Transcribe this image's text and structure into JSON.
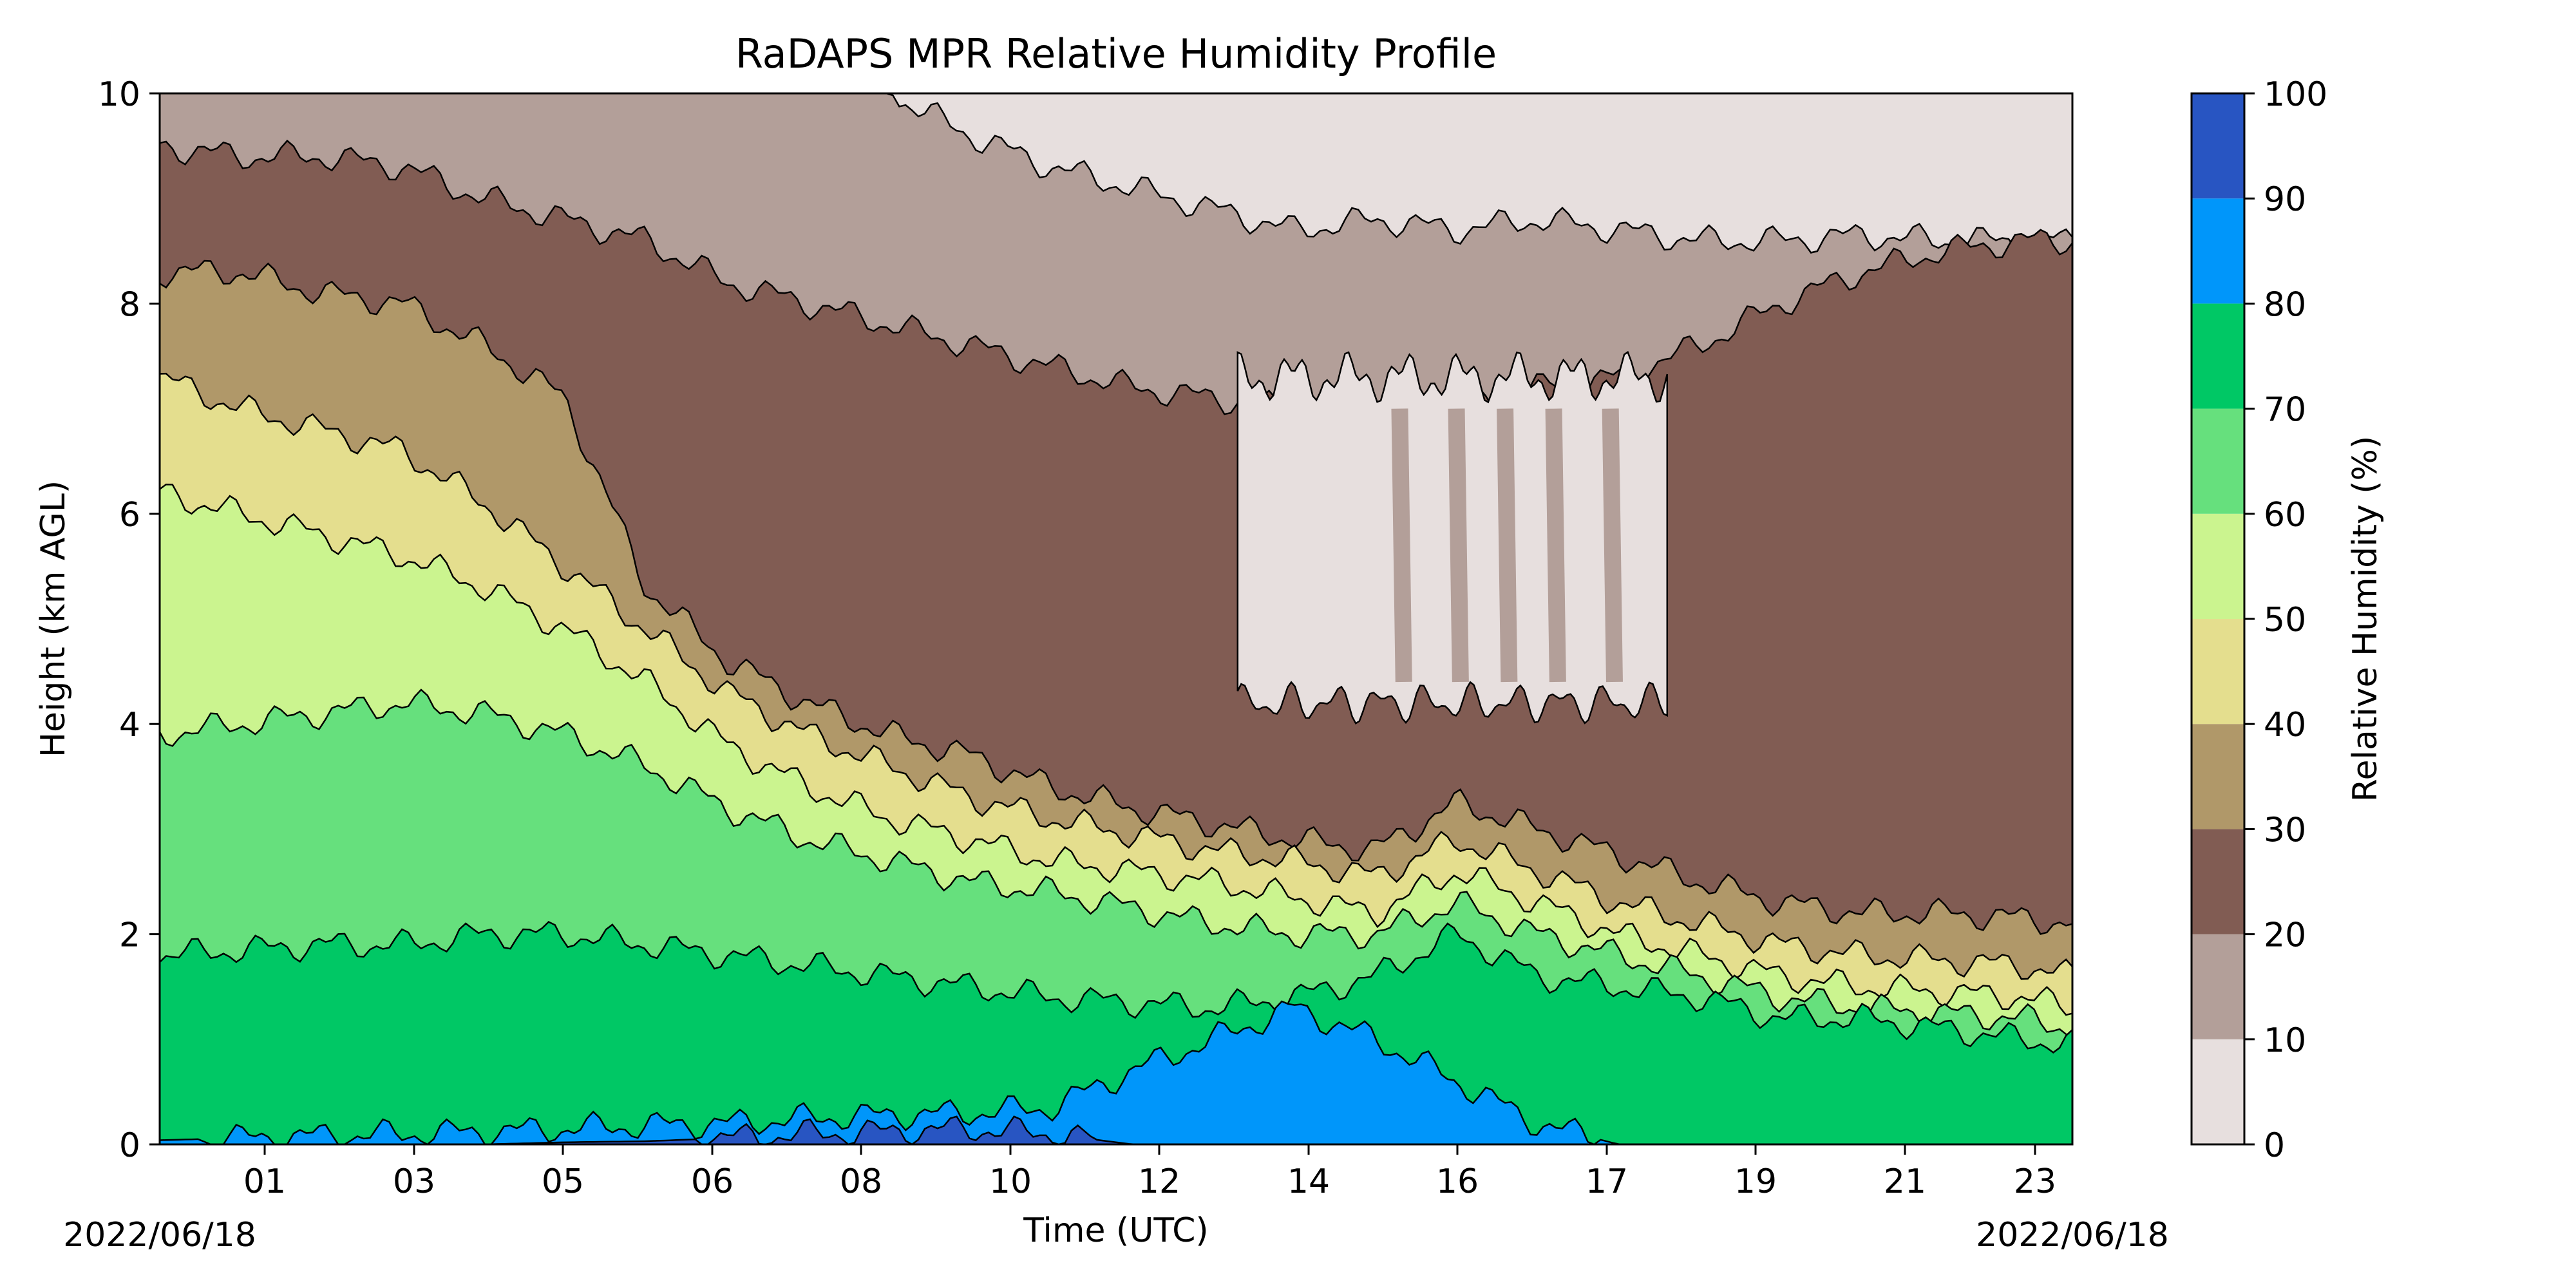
{
  "chart_data": {
    "type": "contour",
    "title": "RaDAPS MPR Relative Humidity Profile",
    "xlabel": "Time (UTC)",
    "ylabel": "Height (km AGL)",
    "x_ticks": [
      "01",
      "03",
      "05",
      "06",
      "08",
      "10",
      "12",
      "14",
      "16",
      "17",
      "19",
      "21",
      "23"
    ],
    "x_range_hours": [
      0,
      23.6
    ],
    "ylim": [
      0,
      10
    ],
    "y_ticks": [
      "0",
      "2",
      "4",
      "6",
      "8",
      "10"
    ],
    "date_left": "2022/06/18",
    "date_right": "2022/06/18",
    "colorbar": {
      "label": "Relative Humidity (%)",
      "ticks": [
        "0",
        "10",
        "20",
        "30",
        "40",
        "50",
        "60",
        "70",
        "80",
        "90",
        "100"
      ],
      "levels": [
        0,
        10,
        20,
        30,
        40,
        50,
        60,
        70,
        80,
        90,
        100
      ],
      "colors": [
        "#e7dfde",
        "#b39f99",
        "#815c53",
        "#b09869",
        "#e4de8e",
        "#cbf48f",
        "#66e07d",
        "#00c865",
        "#0096fa",
        "#2855c2"
      ]
    },
    "contour_boundaries_km": {
      "comment_free": true,
      "hours": [
        0,
        1,
        2,
        3,
        4,
        5,
        6,
        7,
        8,
        9,
        10,
        11,
        12,
        13,
        14,
        15,
        16,
        17,
        18,
        19,
        20,
        21,
        22,
        23,
        23.6
      ],
      "rh_90_top": [
        0,
        0,
        0,
        0,
        0,
        0.02,
        0.03,
        0.06,
        0.1,
        0.12,
        0.15,
        0.1,
        0,
        0,
        0,
        0,
        0,
        0,
        0,
        0,
        0,
        0,
        0,
        0,
        0
      ],
      "rh_80_top": [
        0.04,
        0.06,
        0.08,
        0.1,
        0.12,
        0.15,
        0.18,
        0.2,
        0.25,
        0.28,
        0.3,
        0.35,
        0.7,
        1.0,
        1.3,
        1.0,
        0.6,
        0.2,
        0,
        0,
        0,
        0,
        0,
        0,
        0
      ],
      "rh_70_top": [
        1.8,
        1.85,
        1.9,
        1.9,
        2.0,
        2.0,
        1.9,
        1.8,
        1.7,
        1.6,
        1.5,
        1.4,
        1.35,
        1.3,
        1.4,
        1.6,
        2.0,
        1.6,
        1.5,
        1.4,
        1.2,
        1.2,
        1.1,
        1.0,
        0.95
      ],
      "rh_60_top": [
        3.9,
        4.0,
        4.1,
        4.2,
        4.1,
        3.9,
        3.6,
        3.2,
        2.9,
        2.7,
        2.5,
        2.4,
        2.25,
        2.1,
        2.0,
        2.0,
        2.3,
        2.0,
        1.8,
        1.6,
        1.4,
        1.3,
        1.25,
        1.2,
        1.1
      ],
      "rh_50_top": [
        6.2,
        6.0,
        5.8,
        5.6,
        5.3,
        4.9,
        4.4,
        3.8,
        3.4,
        3.1,
        2.9,
        2.7,
        2.6,
        2.5,
        2.35,
        2.2,
        2.6,
        2.3,
        2.0,
        1.8,
        1.6,
        1.5,
        1.45,
        1.4,
        1.3
      ],
      "rh_40_top": [
        7.3,
        7.0,
        6.8,
        6.6,
        6.1,
        5.5,
        4.9,
        4.3,
        3.9,
        3.6,
        3.3,
        3.1,
        2.95,
        2.8,
        2.7,
        2.55,
        2.9,
        2.6,
        2.3,
        2.1,
        1.9,
        1.8,
        1.75,
        1.7,
        1.6
      ],
      "rh_30_top": [
        8.3,
        8.3,
        8.1,
        8.0,
        7.6,
        7.1,
        5.3,
        4.6,
        4.2,
        3.9,
        3.7,
        3.4,
        3.2,
        3.05,
        2.9,
        2.8,
        3.25,
        3.0,
        2.75,
        2.5,
        2.3,
        2.2,
        2.2,
        2.15,
        2.1
      ],
      "rh_20_top": [
        9.5,
        9.4,
        9.4,
        9.3,
        9.0,
        8.8,
        8.6,
        8.2,
        8.0,
        7.8,
        7.6,
        7.4,
        7.2,
        7.1,
        7.0,
        7.0,
        7.0,
        7.2,
        7.3,
        7.6,
        8.0,
        8.3,
        8.5,
        8.6,
        8.6
      ],
      "rh_10_top": [
        10,
        10,
        10,
        10,
        10,
        10,
        10,
        10,
        10,
        10,
        9.6,
        9.3,
        9.1,
        8.9,
        8.7,
        8.8,
        8.7,
        8.8,
        8.7,
        8.6,
        8.6,
        8.65,
        8.6,
        8.6,
        8.6
      ]
    },
    "dry_pocket": {
      "hours": [
        13.3,
        18.6
      ],
      "km_bottom": 4.2,
      "km_top": 7.3
    }
  }
}
